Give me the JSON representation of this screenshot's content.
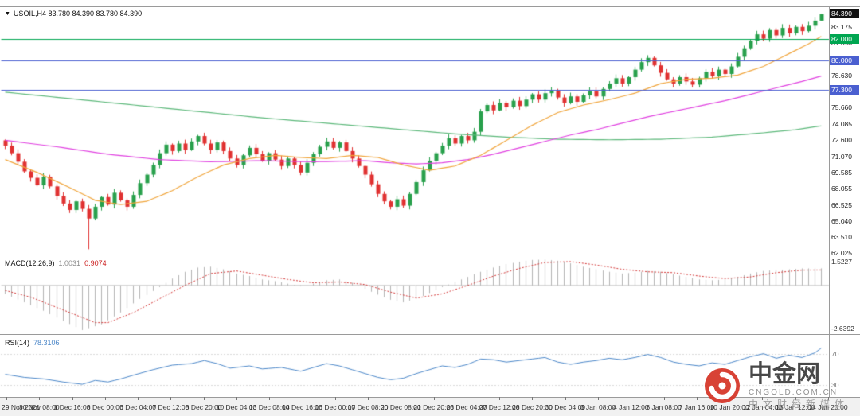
{
  "main_panel": {
    "dropdown_arrow": "▼",
    "symbol_period": "USOIL,H4",
    "ohlc": "83.780 84.390 83.780 84.390",
    "ylim": [
      61.9,
      85.0
    ],
    "price_ticks": [
      "83.175",
      "81.690",
      "80.205",
      "78.630",
      "77.145",
      "75.660",
      "74.085",
      "72.600",
      "71.070",
      "69.585",
      "68.055",
      "66.525",
      "65.040",
      "63.510",
      "62.025"
    ],
    "price_lines": [
      {
        "value": 84.39,
        "label": "84.390",
        "color": "#111111",
        "type": "current-price"
      },
      {
        "value": 82.0,
        "label": "82.000",
        "color": "#00a651",
        "type": "horizontal-line"
      },
      {
        "value": 80.0,
        "label": "80.000",
        "color": "#4a5fd0",
        "type": "horizontal-line"
      },
      {
        "value": 77.3,
        "label": "77.300",
        "color": "#4a5fd0",
        "type": "horizontal-line"
      }
    ]
  },
  "macd_panel": {
    "label": "MACD(12,26,9)",
    "main_value": "1.0031",
    "signal_value": "0.9074",
    "axis_max": "1.5227",
    "axis_min": "-2.6392",
    "ylim": [
      -2.9,
      1.75
    ]
  },
  "rsi_panel": {
    "label": "RSI(14)",
    "value": "78.3106",
    "levels": [
      70,
      30
    ],
    "ylim": [
      15,
      95
    ]
  },
  "time_axis": {
    "labels": [
      "29 Nov 2021",
      "30 Nov 08:00",
      "1 Dec 16:00",
      "3 Dec 00:00",
      "6 Dec 04:00",
      "7 Dec 12:00",
      "8 Dec 20:00",
      "10 Dec 04:00",
      "13 Dec 08:00",
      "14 Dec 16:00",
      "16 Dec 00:00",
      "17 Dec 08:00",
      "20 Dec 08:00",
      "21 Dec 20:00",
      "23 Dec 04:00",
      "27 Dec 12:00",
      "28 Dec 20:00",
      "30 Dec 04:00",
      "3 Jan 08:00",
      "4 Jan 12:00",
      "6 Jan 08:00",
      "7 Jan 16:00",
      "10 Jan 20:00",
      "12 Jan 04:00",
      "13 Jan 12:00",
      "14 Jan 20:00"
    ]
  },
  "watermark": {
    "brand": "中金网",
    "domain": "CNGOLD.COM.CN",
    "tagline": "中文财经新媒体"
  },
  "chart_data": {
    "type": "candlestick",
    "symbol": "USOIL",
    "timeframe": "H4",
    "title": "USOIL,H4 83.780 84.390 83.780 84.390",
    "bars": 128,
    "first_open": 72.6,
    "closes": [
      72.1,
      71.4,
      70.6,
      69.7,
      69.1,
      68.4,
      69.2,
      68.3,
      67.4,
      66.7,
      66.1,
      66.9,
      66.2,
      65.3,
      66.4,
      67.3,
      66.6,
      67.7,
      67.0,
      66.4,
      67.5,
      68.6,
      69.4,
      70.3,
      71.4,
      72.2,
      71.6,
      72.3,
      71.7,
      72.5,
      73.0,
      72.3,
      71.7,
      72.4,
      71.6,
      70.9,
      70.3,
      71.2,
      71.9,
      71.3,
      70.7,
      71.4,
      70.8,
      70.2,
      70.9,
      70.3,
      69.6,
      70.5,
      71.3,
      72.0,
      72.5,
      71.9,
      72.4,
      71.6,
      70.9,
      70.2,
      69.4,
      68.5,
      67.6,
      66.9,
      66.4,
      67.1,
      66.5,
      67.6,
      68.7,
      69.8,
      70.7,
      71.4,
      72.1,
      72.8,
      72.3,
      73.0,
      72.6,
      73.4,
      75.3,
      75.9,
      75.4,
      76.1,
      75.7,
      76.3,
      75.8,
      76.4,
      76.9,
      76.4,
      77.0,
      77.3,
      76.6,
      76.1,
      76.7,
      76.2,
      76.8,
      77.2,
      76.7,
      77.4,
      77.9,
      78.4,
      77.9,
      78.5,
      79.2,
      79.9,
      80.3,
      79.6,
      78.9,
      78.3,
      77.9,
      78.5,
      78.1,
      77.8,
      78.4,
      79.0,
      78.6,
      79.2,
      78.8,
      79.5,
      80.4,
      81.2,
      81.9,
      82.5,
      82.1,
      82.9,
      82.4,
      83.1,
      82.6,
      83.2,
      82.8,
      83.3,
      83.78,
      84.39
    ],
    "wick_overrides": {
      "13": {
        "low": 62.43
      },
      "100": {
        "high": 80.55
      },
      "127": {
        "high": 84.39,
        "low": 83.78
      }
    },
    "last_candle": {
      "open": 83.78,
      "high": 84.39,
      "low": 83.78,
      "close": 84.39
    },
    "hlines": [
      {
        "price": 82.0,
        "color": "#00a651"
      },
      {
        "price": 80.0,
        "color": "#4a5fd0"
      },
      {
        "price": 77.3,
        "color": "#4a5fd0"
      }
    ],
    "overlays": {
      "ma_orange": [
        [
          0,
          70.8
        ],
        [
          5,
          69.6
        ],
        [
          10,
          68.2
        ],
        [
          14,
          67.0
        ],
        [
          18,
          66.6
        ],
        [
          22,
          66.9
        ],
        [
          26,
          67.9
        ],
        [
          30,
          69.2
        ],
        [
          34,
          70.3
        ],
        [
          38,
          70.9
        ],
        [
          42,
          71.2
        ],
        [
          46,
          71.0
        ],
        [
          50,
          70.9
        ],
        [
          54,
          71.2
        ],
        [
          58,
          71.0
        ],
        [
          62,
          70.3
        ],
        [
          66,
          69.8
        ],
        [
          70,
          70.2
        ],
        [
          74,
          71.2
        ],
        [
          78,
          72.6
        ],
        [
          82,
          74.0
        ],
        [
          86,
          75.2
        ],
        [
          90,
          75.9
        ],
        [
          94,
          76.4
        ],
        [
          98,
          77.0
        ],
        [
          102,
          77.9
        ],
        [
          106,
          78.3
        ],
        [
          110,
          78.4
        ],
        [
          114,
          78.7
        ],
        [
          118,
          79.5
        ],
        [
          122,
          80.7
        ],
        [
          125,
          81.6
        ],
        [
          127,
          82.3
        ]
      ],
      "ma_magenta": [
        [
          0,
          72.6
        ],
        [
          8,
          72.0
        ],
        [
          16,
          71.3
        ],
        [
          24,
          70.8
        ],
        [
          32,
          70.6
        ],
        [
          40,
          70.7
        ],
        [
          48,
          70.6
        ],
        [
          56,
          70.7
        ],
        [
          60,
          70.5
        ],
        [
          64,
          70.4
        ],
        [
          68,
          70.5
        ],
        [
          72,
          70.8
        ],
        [
          76,
          71.3
        ],
        [
          80,
          71.9
        ],
        [
          84,
          72.5
        ],
        [
          88,
          73.1
        ],
        [
          92,
          73.6
        ],
        [
          96,
          74.2
        ],
        [
          100,
          74.8
        ],
        [
          104,
          75.3
        ],
        [
          108,
          75.8
        ],
        [
          112,
          76.3
        ],
        [
          116,
          76.9
        ],
        [
          120,
          77.5
        ],
        [
          124,
          78.1
        ],
        [
          127,
          78.6
        ]
      ],
      "ma_green": [
        [
          0,
          77.1
        ],
        [
          10,
          76.5
        ],
        [
          20,
          75.9
        ],
        [
          30,
          75.3
        ],
        [
          40,
          74.7
        ],
        [
          50,
          74.2
        ],
        [
          60,
          73.7
        ],
        [
          70,
          73.2
        ],
        [
          78,
          72.9
        ],
        [
          86,
          72.7
        ],
        [
          94,
          72.65
        ],
        [
          102,
          72.7
        ],
        [
          110,
          72.9
        ],
        [
          118,
          73.3
        ],
        [
          123,
          73.6
        ],
        [
          127,
          73.95
        ]
      ]
    },
    "macd": {
      "current_main": 1.0031,
      "current_signal": 0.9074,
      "hist_anchors": [
        [
          0,
          -0.5
        ],
        [
          3,
          -1.0
        ],
        [
          6,
          -1.5
        ],
        [
          9,
          -2.1
        ],
        [
          12,
          -2.64
        ],
        [
          15,
          -2.3
        ],
        [
          18,
          -1.6
        ],
        [
          21,
          -0.8
        ],
        [
          24,
          -0.1
        ],
        [
          26,
          0.4
        ],
        [
          28,
          0.8
        ],
        [
          30,
          1.05
        ],
        [
          32,
          1.1
        ],
        [
          34,
          0.95
        ],
        [
          36,
          0.7
        ],
        [
          38,
          0.55
        ],
        [
          40,
          0.35
        ],
        [
          42,
          0.25
        ],
        [
          44,
          0.1
        ],
        [
          46,
          -0.05
        ],
        [
          48,
          0.1
        ],
        [
          50,
          0.3
        ],
        [
          52,
          0.35
        ],
        [
          54,
          0.15
        ],
        [
          56,
          -0.2
        ],
        [
          58,
          -0.55
        ],
        [
          60,
          -0.85
        ],
        [
          62,
          -1.0
        ],
        [
          64,
          -0.8
        ],
        [
          66,
          -0.45
        ],
        [
          68,
          -0.1
        ],
        [
          70,
          0.2
        ],
        [
          72,
          0.5
        ],
        [
          74,
          0.8
        ],
        [
          76,
          1.05
        ],
        [
          78,
          1.25
        ],
        [
          80,
          1.4
        ],
        [
          82,
          1.5
        ],
        [
          84,
          1.52
        ],
        [
          86,
          1.45
        ],
        [
          88,
          1.3
        ],
        [
          90,
          1.1
        ],
        [
          92,
          0.95
        ],
        [
          94,
          0.8
        ],
        [
          96,
          0.7
        ],
        [
          98,
          0.75
        ],
        [
          100,
          0.85
        ],
        [
          102,
          0.8
        ],
        [
          104,
          0.65
        ],
        [
          106,
          0.5
        ],
        [
          108,
          0.35
        ],
        [
          110,
          0.3
        ],
        [
          112,
          0.35
        ],
        [
          114,
          0.5
        ],
        [
          116,
          0.7
        ],
        [
          118,
          0.85
        ],
        [
          120,
          0.9
        ],
        [
          122,
          0.95
        ],
        [
          124,
          1.0
        ],
        [
          127,
          1.0031
        ]
      ],
      "signal_anchors": [
        [
          0,
          -0.3
        ],
        [
          4,
          -0.7
        ],
        [
          8,
          -1.3
        ],
        [
          12,
          -1.9
        ],
        [
          14,
          -2.2
        ],
        [
          16,
          -2.2
        ],
        [
          20,
          -1.6
        ],
        [
          24,
          -0.8
        ],
        [
          28,
          0.0
        ],
        [
          32,
          0.7
        ],
        [
          36,
          0.85
        ],
        [
          40,
          0.6
        ],
        [
          44,
          0.35
        ],
        [
          48,
          0.15
        ],
        [
          52,
          0.2
        ],
        [
          56,
          0.05
        ],
        [
          60,
          -0.4
        ],
        [
          64,
          -0.75
        ],
        [
          68,
          -0.5
        ],
        [
          72,
          0.0
        ],
        [
          76,
          0.55
        ],
        [
          80,
          1.0
        ],
        [
          84,
          1.35
        ],
        [
          88,
          1.4
        ],
        [
          92,
          1.2
        ],
        [
          96,
          0.95
        ],
        [
          100,
          0.8
        ],
        [
          104,
          0.75
        ],
        [
          108,
          0.55
        ],
        [
          112,
          0.4
        ],
        [
          116,
          0.5
        ],
        [
          120,
          0.75
        ],
        [
          124,
          0.9
        ],
        [
          127,
          0.9074
        ]
      ]
    },
    "rsi": {
      "current": 78.3106,
      "anchors": [
        [
          0,
          44
        ],
        [
          3,
          40
        ],
        [
          6,
          38
        ],
        [
          9,
          34
        ],
        [
          12,
          31
        ],
        [
          14,
          36
        ],
        [
          16,
          34
        ],
        [
          18,
          38
        ],
        [
          20,
          43
        ],
        [
          23,
          50
        ],
        [
          26,
          56
        ],
        [
          29,
          58
        ],
        [
          31,
          62
        ],
        [
          33,
          58
        ],
        [
          35,
          52
        ],
        [
          38,
          55
        ],
        [
          40,
          51
        ],
        [
          43,
          53
        ],
        [
          46,
          48
        ],
        [
          48,
          53
        ],
        [
          50,
          58
        ],
        [
          52,
          55
        ],
        [
          54,
          50
        ],
        [
          56,
          45
        ],
        [
          58,
          40
        ],
        [
          60,
          37
        ],
        [
          62,
          39
        ],
        [
          64,
          45
        ],
        [
          66,
          50
        ],
        [
          68,
          55
        ],
        [
          70,
          53
        ],
        [
          72,
          57
        ],
        [
          74,
          64
        ],
        [
          76,
          63
        ],
        [
          78,
          60
        ],
        [
          80,
          62
        ],
        [
          82,
          64
        ],
        [
          84,
          66
        ],
        [
          86,
          60
        ],
        [
          88,
          57
        ],
        [
          90,
          60
        ],
        [
          92,
          62
        ],
        [
          94,
          65
        ],
        [
          96,
          63
        ],
        [
          98,
          66
        ],
        [
          100,
          70
        ],
        [
          102,
          66
        ],
        [
          104,
          60
        ],
        [
          106,
          57
        ],
        [
          108,
          55
        ],
        [
          110,
          59
        ],
        [
          112,
          57
        ],
        [
          114,
          62
        ],
        [
          116,
          67
        ],
        [
          118,
          71
        ],
        [
          120,
          65
        ],
        [
          122,
          69
        ],
        [
          124,
          66
        ],
        [
          126,
          72
        ],
        [
          127,
          78.31
        ]
      ]
    },
    "colors": {
      "bull": "#28a04c",
      "bear": "#e03131",
      "ma_orange": "#f0a53c",
      "ma_magenta": "#e040e0",
      "ma_green": "#5cb87a",
      "macd_hist": "#b3b3b3",
      "macd_signal": "#d23333",
      "rsi_line": "#4a86c8",
      "hline_green": "#00a651",
      "hline_blue": "#4a5fd0"
    }
  }
}
